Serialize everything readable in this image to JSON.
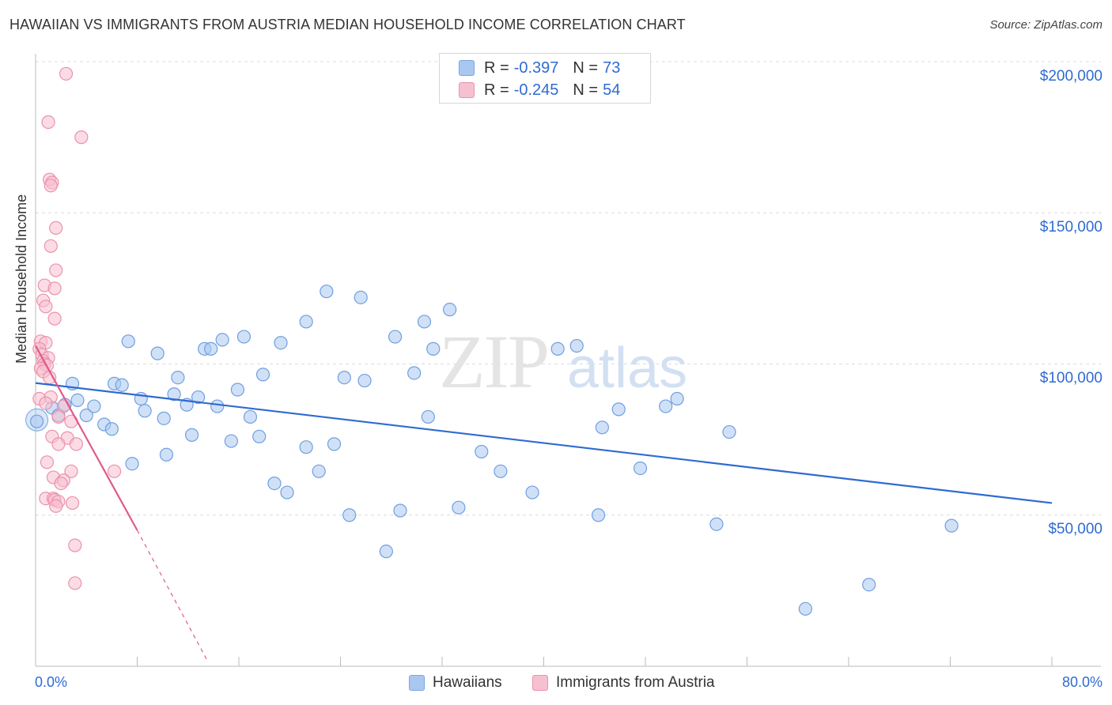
{
  "title": "HAWAIIAN VS IMMIGRANTS FROM AUSTRIA MEDIAN HOUSEHOLD INCOME CORRELATION CHART",
  "source": "Source: ZipAtlas.com",
  "watermark": "ZIPatlas",
  "legend": {
    "r_label": "R =",
    "n_label": "N =",
    "rows": [
      {
        "r": "-0.397",
        "n": "73",
        "color": "#a9c8f0",
        "border": "#7aa5e0"
      },
      {
        "r": "-0.245",
        "n": "54",
        "color": "#f7c0d0",
        "border": "#ec91ad"
      }
    ]
  },
  "colors": {
    "blue": "#2f6bd0",
    "pink": "#e05a8a",
    "blue_fill": "#a9c8f0",
    "pink_fill": "#f7c0d0"
  },
  "chart_data": {
    "type": "scatter",
    "title": "HAWAIIAN VS IMMIGRANTS FROM AUSTRIA MEDIAN HOUSEHOLD INCOME CORRELATION CHART",
    "xlabel": "",
    "ylabel": "Median Household Income",
    "xlim": [
      0,
      80
    ],
    "ylim": [
      0,
      200000
    ],
    "x_tick_labels": [
      "0.0%",
      "80.0%"
    ],
    "y_ticks": [
      50000,
      100000,
      150000,
      200000
    ],
    "y_tick_labels": [
      "$50,000",
      "$100,000",
      "$150,000",
      "$200,000"
    ],
    "grid": true,
    "series": [
      {
        "name": "Hawaiians",
        "r": -0.397,
        "n": 73,
        "trend": {
          "x": [
            0,
            80
          ],
          "y": [
            93700,
            54000
          ]
        },
        "points": [
          [
            0.1,
            81000
          ],
          [
            1.3,
            85500
          ],
          [
            1.8,
            83000
          ],
          [
            2.3,
            86500
          ],
          [
            2.9,
            93500
          ],
          [
            3.3,
            88000
          ],
          [
            4.0,
            83000
          ],
          [
            4.6,
            86000
          ],
          [
            5.4,
            80000
          ],
          [
            6.0,
            78500
          ],
          [
            6.2,
            93500
          ],
          [
            6.8,
            93000
          ],
          [
            7.6,
            67000
          ],
          [
            7.3,
            107500
          ],
          [
            8.3,
            88500
          ],
          [
            8.6,
            84500
          ],
          [
            9.6,
            103500
          ],
          [
            10.1,
            82000
          ],
          [
            10.3,
            70000
          ],
          [
            10.9,
            90000
          ],
          [
            11.2,
            95500
          ],
          [
            11.9,
            86500
          ],
          [
            12.3,
            76500
          ],
          [
            12.8,
            89000
          ],
          [
            13.3,
            105000
          ],
          [
            13.8,
            105000
          ],
          [
            14.3,
            86000
          ],
          [
            14.7,
            108000
          ],
          [
            15.4,
            74500
          ],
          [
            15.9,
            91500
          ],
          [
            16.4,
            109000
          ],
          [
            16.9,
            82500
          ],
          [
            17.6,
            76000
          ],
          [
            17.9,
            96500
          ],
          [
            18.8,
            60500
          ],
          [
            19.3,
            107000
          ],
          [
            19.8,
            57500
          ],
          [
            21.3,
            114000
          ],
          [
            21.3,
            72500
          ],
          [
            22.3,
            64500
          ],
          [
            22.9,
            124000
          ],
          [
            23.5,
            73500
          ],
          [
            24.3,
            95500
          ],
          [
            24.7,
            50000
          ],
          [
            25.6,
            122000
          ],
          [
            25.9,
            94500
          ],
          [
            27.6,
            38000
          ],
          [
            28.3,
            109000
          ],
          [
            28.7,
            51500
          ],
          [
            29.8,
            97000
          ],
          [
            30.6,
            114000
          ],
          [
            30.9,
            82500
          ],
          [
            31.3,
            105000
          ],
          [
            32.6,
            118000
          ],
          [
            33.3,
            52500
          ],
          [
            35.1,
            71000
          ],
          [
            36.6,
            64500
          ],
          [
            39.1,
            57500
          ],
          [
            41.1,
            105000
          ],
          [
            42.6,
            106000
          ],
          [
            44.3,
            50000
          ],
          [
            44.6,
            79000
          ],
          [
            45.9,
            85000
          ],
          [
            47.6,
            65500
          ],
          [
            49.6,
            86000
          ],
          [
            50.5,
            88500
          ],
          [
            53.6,
            47000
          ],
          [
            54.6,
            77500
          ],
          [
            60.6,
            19000
          ],
          [
            65.6,
            27000
          ],
          [
            72.1,
            46500
          ]
        ]
      },
      {
        "name": "Immigrants from Austria",
        "r": -0.245,
        "n": 54,
        "trend": {
          "x": [
            0,
            8
          ],
          "y": [
            106000,
            45000
          ]
        },
        "trend_dashed": {
          "x": [
            8,
            13.5
          ],
          "y": [
            45000,
            2000
          ]
        },
        "points": [
          [
            2.4,
            196000
          ],
          [
            1.0,
            180000
          ],
          [
            3.6,
            175000
          ],
          [
            1.1,
            161000
          ],
          [
            1.3,
            160000
          ],
          [
            1.2,
            159000
          ],
          [
            1.6,
            145000
          ],
          [
            1.2,
            139000
          ],
          [
            1.6,
            131000
          ],
          [
            0.7,
            126000
          ],
          [
            1.5,
            125000
          ],
          [
            0.6,
            121000
          ],
          [
            0.8,
            119000
          ],
          [
            1.5,
            115000
          ],
          [
            0.4,
            107500
          ],
          [
            0.8,
            107000
          ],
          [
            0.3,
            105000
          ],
          [
            0.5,
            103000
          ],
          [
            1.0,
            102000
          ],
          [
            0.6,
            101000
          ],
          [
            0.7,
            100000
          ],
          [
            0.9,
            99500
          ],
          [
            0.4,
            98500
          ],
          [
            0.6,
            97500
          ],
          [
            1.1,
            95500
          ],
          [
            0.3,
            88500
          ],
          [
            1.2,
            89000
          ],
          [
            0.8,
            87000
          ],
          [
            2.2,
            86000
          ],
          [
            1.8,
            82500
          ],
          [
            2.8,
            81000
          ],
          [
            1.3,
            76000
          ],
          [
            2.5,
            75500
          ],
          [
            1.8,
            73500
          ],
          [
            3.2,
            73500
          ],
          [
            0.9,
            67500
          ],
          [
            2.8,
            64500
          ],
          [
            6.2,
            64500
          ],
          [
            1.4,
            62500
          ],
          [
            2.2,
            61500
          ],
          [
            2.0,
            60500
          ],
          [
            0.8,
            55500
          ],
          [
            1.4,
            55500
          ],
          [
            1.5,
            55000
          ],
          [
            1.8,
            54500
          ],
          [
            2.9,
            54000
          ],
          [
            1.6,
            53000
          ],
          [
            3.1,
            40000
          ],
          [
            3.1,
            27500
          ]
        ]
      }
    ]
  }
}
